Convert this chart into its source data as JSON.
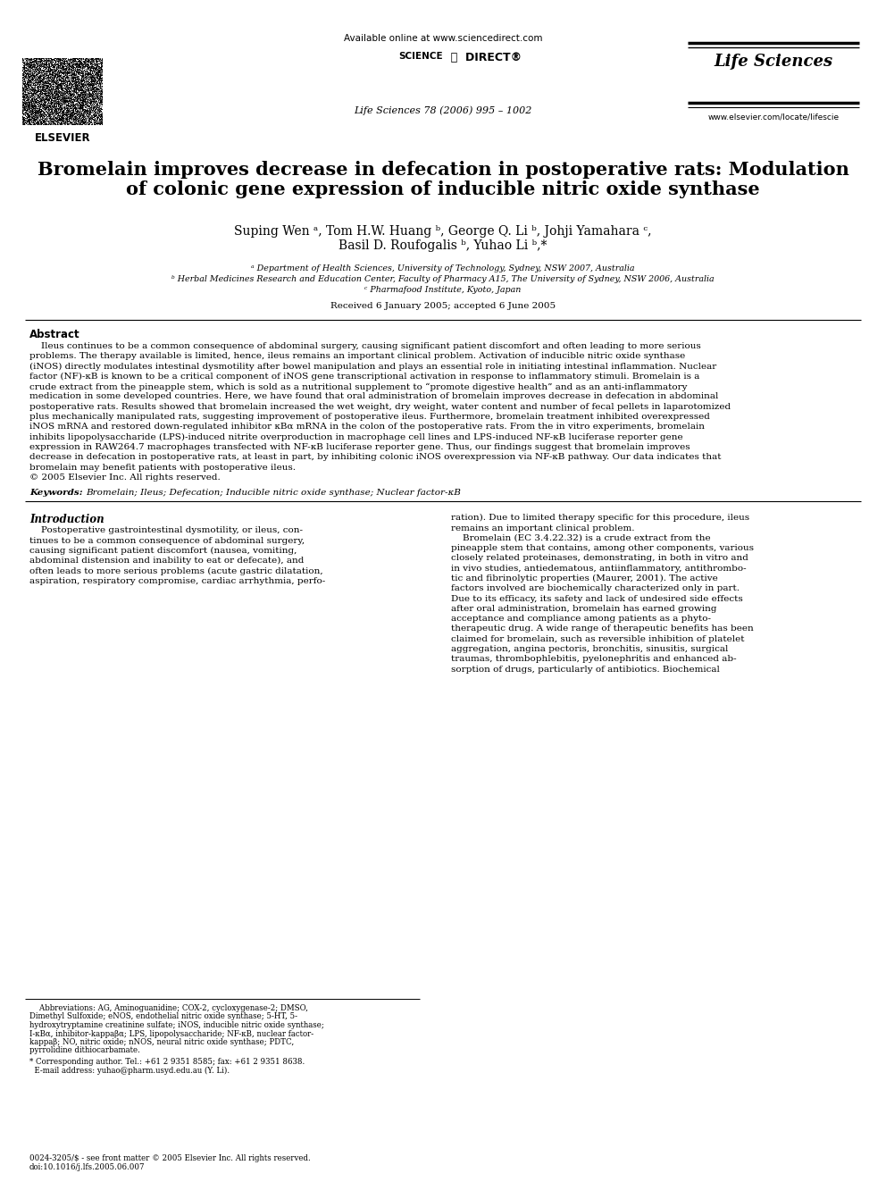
{
  "bg_color": "#ffffff",
  "header_available_online": "Available online at www.sciencedirect.com",
  "journal_name": "Life Sciences",
  "journal_issue": "Life Sciences 78 (2006) 995 – 1002",
  "journal_url": "www.elsevier.com/locate/lifescie",
  "title_line1": "Bromelain improves decrease in defecation in postoperative rats: Modulation",
  "title_line2": "of colonic gene expression of inducible nitric oxide synthase",
  "authors_line1": "Suping Wen ᵃ, Tom H.W. Huang ᵇ, George Q. Li ᵇ, Johji Yamahara ᶜ,",
  "authors_line2": "Basil D. Roufogalis ᵇ, Yuhao Li ᵇ,*",
  "affil_a": "ᵃ Department of Health Sciences, University of Technology, Sydney, NSW 2007, Australia",
  "affil_b": "ᵇ Herbal Medicines Research and Education Center, Faculty of Pharmacy A15, The University of Sydney, NSW 2006, Australia",
  "affil_c": "ᶜ Pharmafood Institute, Kyoto, Japan",
  "received": "Received 6 January 2005; accepted 6 June 2005",
  "abstract_title": "Abstract",
  "keywords_label": "Keywords:",
  "keywords_text": "Bromelain; Ileus; Defecation; Inducible nitric oxide synthase; Nuclear factor-κB",
  "intro_title": "Introduction",
  "footnote_issn": "0024-3205/$ - see front matter © 2005 Elsevier Inc. All rights reserved.",
  "footnote_doi": "doi:10.1016/j.lfs.2005.06.007",
  "abstract_lines": [
    "    Ileus continues to be a common consequence of abdominal surgery, causing significant patient discomfort and often leading to more serious",
    "problems. The therapy available is limited, hence, ileus remains an important clinical problem. Activation of inducible nitric oxide synthase",
    "(iNOS) directly modulates intestinal dysmotility after bowel manipulation and plays an essential role in initiating intestinal inflammation. Nuclear",
    "factor (NF)-κB is known to be a critical component of iNOS gene transcriptional activation in response to inflammatory stimuli. Bromelain is a",
    "crude extract from the pineapple stem, which is sold as a nutritional supplement to “promote digestive health” and as an anti-inflammatory",
    "medication in some developed countries. Here, we have found that oral administration of bromelain improves decrease in defecation in abdominal",
    "postoperative rats. Results showed that bromelain increased the wet weight, dry weight, water content and number of fecal pellets in laparotomized",
    "plus mechanically manipulated rats, suggesting improvement of postoperative ileus. Furthermore, bromelain treatment inhibited overexpressed",
    "iNOS mRNA and restored down-regulated inhibitor κBα mRNA in the colon of the postoperative rats. From the in vitro experiments, bromelain",
    "inhibits lipopolysaccharide (LPS)-induced nitrite overproduction in macrophage cell lines and LPS-induced NF-κB luciferase reporter gene",
    "expression in RAW264.7 macrophages transfected with NF-κB luciferase reporter gene. Thus, our findings suggest that bromelain improves",
    "decrease in defecation in postoperative rats, at least in part, by inhibiting colonic iNOS overexpression via NF-κB pathway. Our data indicates that",
    "bromelain may benefit patients with postoperative ileus.",
    "© 2005 Elsevier Inc. All rights reserved."
  ],
  "intro_left_lines": [
    "    Postoperative gastrointestinal dysmotility, or ileus, con-",
    "tinues to be a common consequence of abdominal surgery,",
    "causing significant patient discomfort (nausea, vomiting,",
    "abdominal distension and inability to eat or defecate), and",
    "often leads to more serious problems (acute gastric dilatation,",
    "aspiration, respiratory compromise, cardiac arrhythmia, perfo-"
  ],
  "intro_right_lines": [
    "ration). Due to limited therapy specific for this procedure, ileus",
    "remains an important clinical problem.",
    "    Bromelain (EC 3.4.22.32) is a crude extract from the",
    "pineapple stem that contains, among other components, various",
    "closely related proteinases, demonstrating, in both in vitro and",
    "in vivo studies, antiedematous, antiinflammatory, antithrombo-",
    "tic and fibrinolytic properties (Maurer, 2001). The active",
    "factors involved are biochemically characterized only in part.",
    "Due to its efficacy, its safety and lack of undesired side effects",
    "after oral administration, bromelain has earned growing",
    "acceptance and compliance among patients as a phyto-",
    "therapeutic drug. A wide range of therapeutic benefits has been",
    "claimed for bromelain, such as reversible inhibition of platelet",
    "aggregation, angina pectoris, bronchitis, sinusitis, surgical",
    "traumas, thrombophlebitis, pyelonephritis and enhanced ab-",
    "sorption of drugs, particularly of antibiotics. Biochemical"
  ],
  "footnote_abbrev_lines": [
    "    Abbreviations: AG, Aminoguanidine; COX-2, cycloxygenase-2; DMSO,",
    "Dimethyl Sulfoxide; eNOS, endothelial nitric oxide synthase; 5-HT, 5-",
    "hydroxytryptamine creatinine sulfate; iNOS, inducible nitric oxide synthase;",
    "I-κBα, inhibitor-kappaβα; LPS, lipopolysaccharide; NF-κB, nuclear factor-",
    "kappaβ; NO, nitric oxide; nNOS, neural nitric oxide synthase; PDTC,",
    "pyrrolidine dithiocarbamate."
  ],
  "footnote_corr_line1": "* Corresponding author. Tel.: +61 2 9351 8585; fax: +61 2 9351 8638.",
  "footnote_corr_line2": "  E-mail address: yuhao@pharm.usyd.edu.au (Y. Li)."
}
